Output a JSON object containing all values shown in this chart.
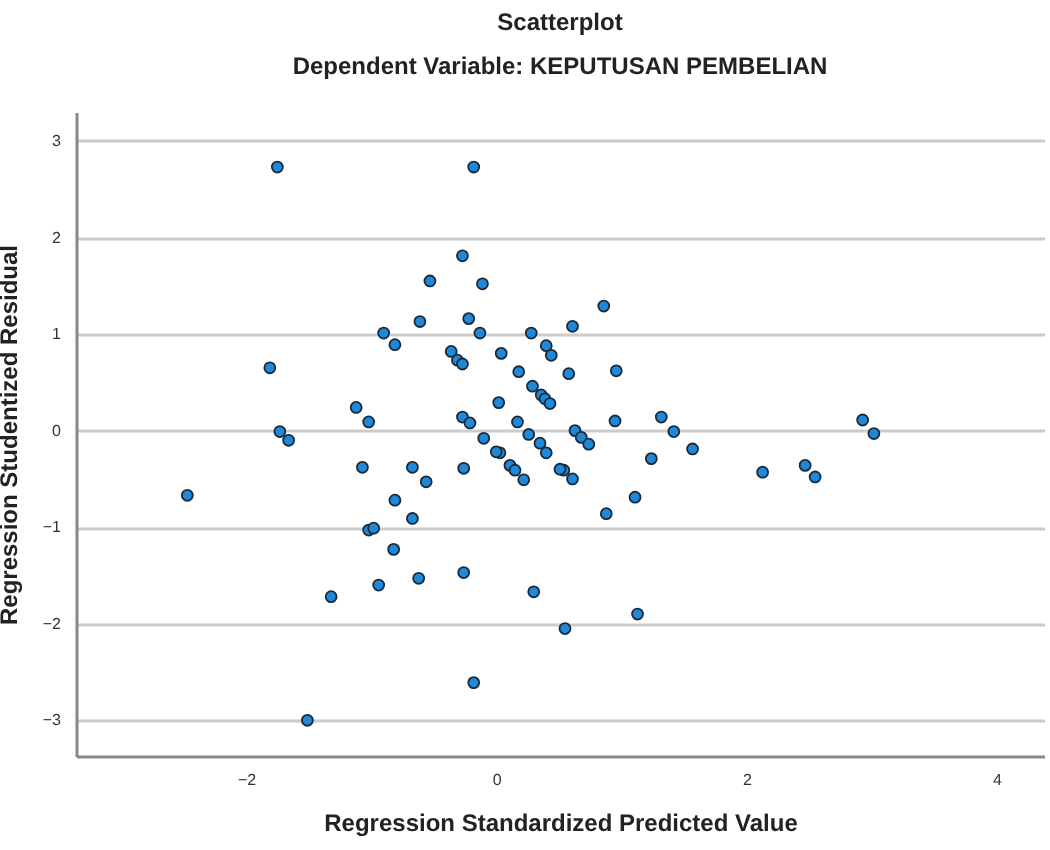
{
  "chart_data": {
    "type": "scatter",
    "title": "Scatterplot",
    "subtitle": "Dependent Variable: KEPUTUSAN PEMBELIAN",
    "xlabel": "Regression Standardized Predicted Value",
    "ylabel": "Regression Studentized Residual",
    "x": [
      -1.75,
      -0.18,
      -0.27,
      -0.53,
      -0.11,
      -0.61,
      -0.22,
      -0.13,
      -0.9,
      -0.81,
      -0.36,
      -0.31,
      -0.27,
      0.04,
      0.28,
      0.4,
      0.44,
      -1.81,
      0.18,
      0.29,
      0.36,
      0.39,
      0.43,
      0.02,
      -1.12,
      -1.02,
      -0.27,
      -0.21,
      0.17,
      0.26,
      -1.73,
      -1.66,
      0.86,
      0.61,
      0.96,
      0.58,
      0.95,
      1.32,
      1.42,
      1.57,
      2.93,
      3.02,
      0.63,
      0.68,
      0.74,
      0.35,
      0.03,
      0.11,
      0.15,
      0.22,
      0.4,
      0.54,
      0.61,
      1.24,
      2.13,
      2.47,
      2.55,
      1.11,
      0.88,
      0.3,
      0.55,
      1.13,
      -2.47,
      -1.07,
      -0.67,
      -0.56,
      -0.26,
      -0.1,
      0.0,
      -0.81,
      -0.67,
      -1.02,
      -0.98,
      -0.82,
      -0.62,
      -0.26,
      -0.94,
      -1.32,
      -0.18,
      -1.51,
      0.51
    ],
    "values": [
      2.73,
      2.73,
      1.81,
      1.55,
      1.52,
      1.13,
      1.16,
      1.01,
      1.01,
      0.89,
      0.82,
      0.73,
      0.69,
      0.8,
      1.01,
      0.88,
      0.78,
      0.65,
      0.61,
      0.46,
      0.37,
      0.33,
      0.28,
      0.29,
      0.24,
      0.09,
      0.14,
      0.08,
      0.09,
      -0.04,
      -0.01,
      -0.1,
      1.29,
      1.08,
      0.62,
      0.59,
      0.1,
      0.14,
      -0.01,
      -0.19,
      0.11,
      -0.03,
      0.0,
      -0.07,
      -0.14,
      -0.13,
      -0.23,
      -0.36,
      -0.41,
      -0.51,
      -0.23,
      -0.41,
      -0.5,
      -0.29,
      -0.43,
      -0.36,
      -0.48,
      -0.69,
      -0.86,
      -1.67,
      -2.05,
      -1.9,
      -0.67,
      -0.38,
      -0.38,
      -0.53,
      -0.39,
      -0.08,
      -0.22,
      -0.72,
      -0.91,
      -1.03,
      -1.01,
      -1.23,
      -1.53,
      -1.47,
      -1.6,
      -1.72,
      -2.61,
      -3.0,
      -0.4
    ],
    "color": "#1f88d8",
    "marker": "circle",
    "xlim": [
      -3.36,
      4.38
    ],
    "xticks": [
      -2,
      0,
      2,
      4
    ],
    "ylim": [
      -3.37,
      3.3
    ],
    "yticks": [
      -3,
      -2,
      -1,
      0,
      1,
      2,
      3
    ],
    "grid": "y"
  }
}
